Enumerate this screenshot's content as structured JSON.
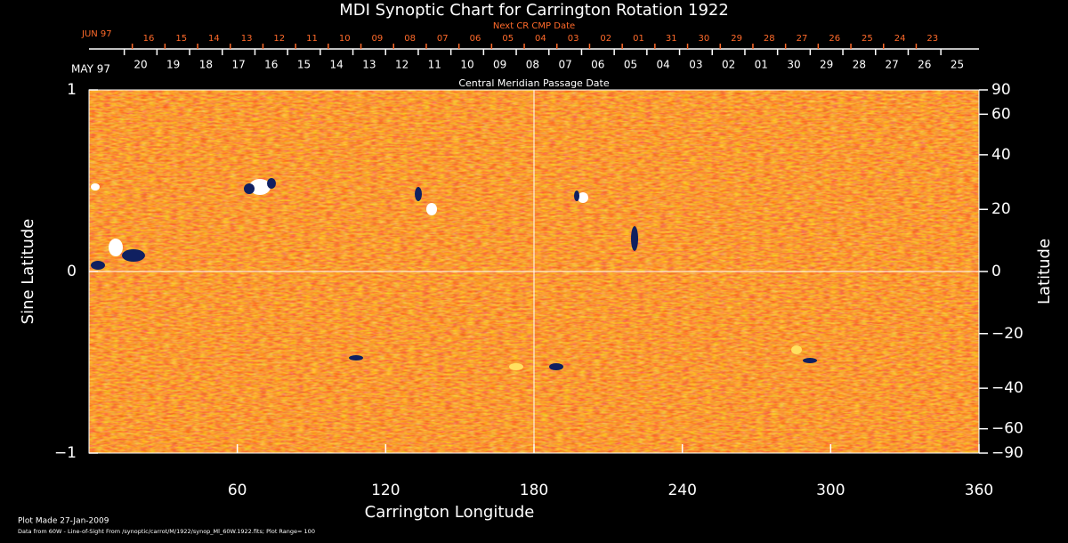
{
  "chart_data": {
    "type": "synoptic-map",
    "title": "MDI Synoptic Chart for Carrington Rotation 1922",
    "xlabel": "Carrington Longitude",
    "ylabel": "Sine Latitude",
    "y2label": "Latitude",
    "xlim": [
      0,
      360
    ],
    "xticks": [
      60,
      120,
      180,
      240,
      300,
      360
    ],
    "ylim": [
      -1,
      1
    ],
    "yticks": [
      {
        "value": -1,
        "label": "−1"
      },
      0,
      1
    ],
    "y2lim": [
      -90,
      90
    ],
    "y2scale": "sine",
    "y2ticks": [
      {
        "value": -90,
        "label": "−90"
      },
      {
        "value": -60,
        "label": "−60"
      },
      {
        "value": -40,
        "label": "−40"
      },
      {
        "value": -20,
        "label": "−20"
      },
      0,
      20,
      40,
      60,
      90
    ],
    "cmp_axis": {
      "label": "Central Meridian Passage Date",
      "month": "MAY 97",
      "dates": [
        "20",
        "19",
        "18",
        "17",
        "16",
        "15",
        "14",
        "13",
        "12",
        "11",
        "10",
        "09",
        "08",
        "07",
        "06",
        "05",
        "04",
        "03",
        "02",
        "01",
        "30",
        "29",
        "28",
        "27",
        "26",
        "25"
      ]
    },
    "next_axis": {
      "label": "Next CR CMP Date",
      "month": "JUN 97",
      "dates": [
        "16",
        "15",
        "14",
        "13",
        "12",
        "11",
        "10",
        "09",
        "08",
        "07",
        "06",
        "05",
        "04",
        "03",
        "02",
        "01",
        "31",
        "30",
        "29",
        "28",
        "27",
        "26",
        "25",
        "24",
        "23"
      ]
    }
  },
  "footer": [
    "Plot Made 27-Jan-2009",
    "Data from 60W - Line-of-Sight From /synoptic/carrot/M/1922/synop_Ml_60W.1922.fits; Plot Range=  100"
  ]
}
